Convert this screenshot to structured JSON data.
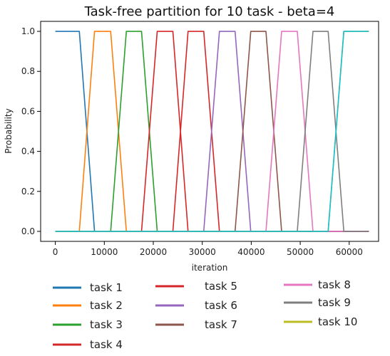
{
  "chart_data": {
    "type": "line",
    "title": "Task-free partition for 10 task - beta=4",
    "xlabel": "iteration",
    "ylabel": "Probability",
    "xlim": [
      -3000,
      66000
    ],
    "ylim": [
      -0.05,
      1.05
    ],
    "xticks": [
      0,
      10000,
      20000,
      30000,
      40000,
      50000,
      60000
    ],
    "xtick_labels": [
      "0",
      "10000",
      "20000",
      "30000",
      "40000",
      "50000",
      "60000"
    ],
    "yticks": [
      0.0,
      0.2,
      0.4,
      0.6,
      0.8,
      1.0
    ],
    "ytick_labels": [
      "0.0",
      "0.2",
      "0.4",
      "0.6",
      "0.8",
      "1.0"
    ],
    "grid": false,
    "legend_position": "below",
    "series": [
      {
        "name": "task 1",
        "color": "#1f77b4",
        "x": [
          0,
          4900,
          8000,
          64000
        ],
        "y": [
          1,
          1,
          0,
          0
        ]
      },
      {
        "name": "task 2",
        "color": "#ff7f0e",
        "x": [
          0,
          4900,
          8000,
          11300,
          14500,
          64000
        ],
        "y": [
          0,
          0,
          1,
          1,
          0,
          0
        ]
      },
      {
        "name": "task 3",
        "color": "#2ca02c",
        "x": [
          0,
          11300,
          14500,
          17600,
          20800,
          64000
        ],
        "y": [
          0,
          0,
          1,
          1,
          0,
          0
        ]
      },
      {
        "name": "task 4",
        "color": "#d62728",
        "x": [
          0,
          17600,
          20800,
          24000,
          27100,
          64000
        ],
        "y": [
          0,
          0,
          1,
          1,
          0,
          0
        ]
      },
      {
        "name": "task 5",
        "color": "#d62728",
        "x": [
          0,
          24000,
          27100,
          30300,
          33500,
          64000
        ],
        "y": [
          0,
          0,
          1,
          1,
          0,
          0
        ]
      },
      {
        "name": "task 6",
        "color": "#9467bd",
        "x": [
          0,
          30300,
          33500,
          36700,
          39900,
          64000
        ],
        "y": [
          0,
          0,
          1,
          1,
          0,
          0
        ]
      },
      {
        "name": "task 7",
        "color": "#8c564b",
        "x": [
          0,
          36700,
          39900,
          43000,
          46200,
          64000
        ],
        "y": [
          0,
          0,
          1,
          1,
          0,
          0
        ]
      },
      {
        "name": "task 8",
        "color": "#e377c2",
        "x": [
          0,
          43000,
          46200,
          49400,
          52600,
          64000
        ],
        "y": [
          0,
          0,
          1,
          1,
          0,
          0
        ]
      },
      {
        "name": "task 9",
        "color": "#7f7f7f",
        "x": [
          0,
          49400,
          52600,
          55700,
          58900,
          64000
        ],
        "y": [
          0,
          0,
          1,
          1,
          0,
          0
        ]
      },
      {
        "name": "task 10",
        "color": "#bcbd22",
        "x": [
          0,
          55700,
          58900,
          64000
        ],
        "y": [
          0,
          0,
          1,
          1
        ]
      },
      {
        "name": "",
        "color": "#17becf",
        "x": [
          0,
          55700,
          58900,
          64000
        ],
        "y": [
          0,
          0,
          1,
          1
        ]
      }
    ]
  }
}
